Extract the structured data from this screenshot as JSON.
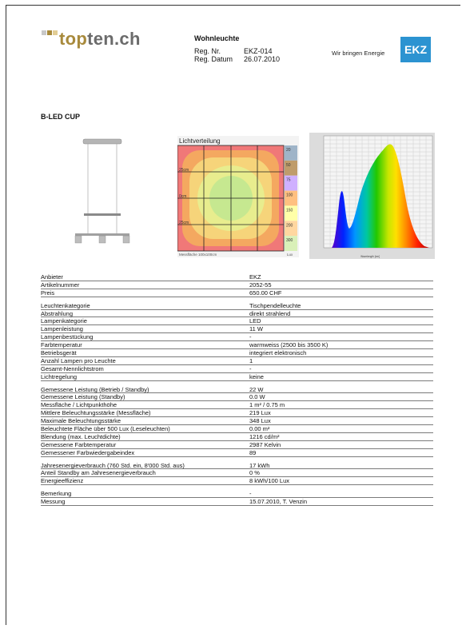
{
  "header": {
    "logo": {
      "top": "top",
      "rest": "ten.ch",
      "square_colors": [
        "#c8c8c8",
        "#a88a3c",
        "#e2cd95"
      ]
    },
    "doc_title": "Wohnleuchte",
    "reg_nr_label": "Reg. Nr.",
    "reg_nr": "EKZ-014",
    "reg_datum_label": "Reg. Datum",
    "reg_datum": "26.07.2010",
    "tagline": "Wir bringen Energie",
    "ekz_logo": "EKZ",
    "ekz_color": "#2c93d1"
  },
  "product_name": "B-LED CUP",
  "light_distribution": {
    "title": "Lichtverteilung",
    "left_labels": [
      "25cm",
      "0cm",
      "25cm"
    ],
    "footer": "Messfläche 100x100cm",
    "legend_unit": "Lux",
    "legend_values": [
      "20",
      "50",
      "75",
      "100",
      "150",
      "200",
      "300"
    ],
    "legend_colors": [
      "#9fb4c8",
      "#bf9c6a",
      "#cfb0ff",
      "#ffc080",
      "#ffffa8",
      "#ffd7a0",
      "#d9f0b8"
    ],
    "zone_colors": [
      "#f07878",
      "#f4a860",
      "#f6d47a",
      "#e8ed8e",
      "#c6e890"
    ]
  },
  "spectrum": {
    "axis_label": "Wavelength [nm]"
  },
  "specs": [
    {
      "group": [
        {
          "label": "Anbieter",
          "value": "EKZ"
        },
        {
          "label": "Artikelnummer",
          "value": "2052-55"
        },
        {
          "label": "Preis",
          "value": "650.00 CHF"
        }
      ]
    },
    {
      "group": [
        {
          "label": "Leuchtenkategorie",
          "value": "Tischpendelleuchte"
        },
        {
          "label": "Abstrahlung",
          "value": "direkt strahlend"
        },
        {
          "label": "Lampenkategorie",
          "value": "LED"
        },
        {
          "label": "Lampenleistung",
          "value": "11 W"
        },
        {
          "label": "Lampenbestückung",
          "value": "-"
        },
        {
          "label": "Farbtemperatur",
          "value": "warmweiss (2500 bis 3500 K)"
        },
        {
          "label": "Betriebsgerät",
          "value": "integriert elektronisch"
        },
        {
          "label": "Anzahl Lampen pro Leuchte",
          "value": "1"
        },
        {
          "label": "Gesamt-Nennlichtstrom",
          "value": "-"
        },
        {
          "label": "Lichtregelung",
          "value": "keine"
        }
      ]
    },
    {
      "group": [
        {
          "label": "Gemessene Leistung (Betrieb / Standby)",
          "value": "22 W"
        },
        {
          "label": "Gemessene Leistung (Standby)",
          "value": "0.0 W"
        },
        {
          "label": "Messfläche / Lichtpunkthöhe",
          "value": "1 m² / 0.75 m"
        },
        {
          "label": "Mittlere Beleuchtungsstärke (Messfläche)",
          "value": "219 Lux"
        },
        {
          "label": "Maximale Beleuchtungsstärke",
          "value": "348 Lux"
        },
        {
          "label": "Beleuchtete Fläche über 500 Lux (Leseleuchten)",
          "value": "0.00 m²"
        },
        {
          "label": "Blendung (max. Leuchtdichte)",
          "value": "1216 cd/m²"
        },
        {
          "label": "Gemessene Farbtemperatur",
          "value": "2987 Kelvin"
        },
        {
          "label": "Gemessener Farbwiedergabeindex",
          "value": "89"
        }
      ]
    },
    {
      "group": [
        {
          "label": "Jahresenergieverbrauch  (760 Std. ein, 8'000 Std. aus)",
          "value": "17 kWh"
        },
        {
          "label": "Anteil Standby am Jahresenergieverbrauch",
          "value": "0 %"
        },
        {
          "label": "Energieeffizienz",
          "value": "8 kWh/100 Lux"
        }
      ]
    },
    {
      "group": [
        {
          "label": "Bemerkung",
          "value": "-"
        },
        {
          "label": "Messung",
          "value": "15.07.2010, T. Venzin"
        }
      ]
    }
  ]
}
